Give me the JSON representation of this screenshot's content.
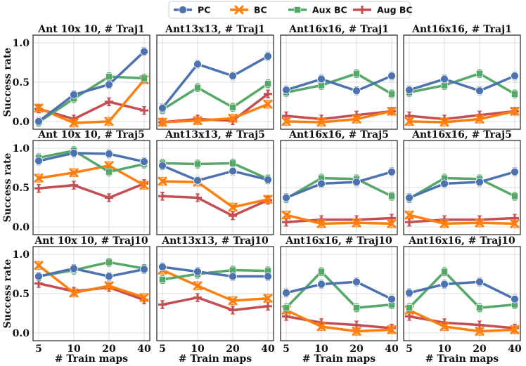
{
  "chart_data": {
    "type": "line",
    "legend": {
      "placement": "top-center",
      "entries": [
        {
          "name": "PC",
          "color": "#4c72b0",
          "marker": "circle"
        },
        {
          "name": "BC",
          "color": "#ff7f0e",
          "marker": "x"
        },
        {
          "name": "Aux BC",
          "color": "#55a868",
          "marker": "square"
        },
        {
          "name": "Aug BC",
          "color": "#c44e52",
          "marker": "plus"
        }
      ]
    },
    "x": [
      5,
      10,
      20,
      40
    ],
    "x_tick_labels": [
      "5",
      "10",
      "20",
      "40"
    ],
    "xlabel": "# Train maps",
    "ylabel": "Success rate",
    "ylim": [
      -0.1,
      1.1
    ],
    "y_ticks": [
      0.0,
      0.5,
      1.0
    ],
    "y_tick_labels": [
      "0.0",
      "0.5",
      "1.0"
    ],
    "grid": true,
    "panels": [
      {
        "title": "Ant 10x 10, # Traj1",
        "series": {
          "PC": [
            0.0,
            0.34,
            0.47,
            0.89
          ],
          "BC": [
            0.17,
            -0.02,
            0.0,
            0.53
          ],
          "Aux BC": [
            -0.01,
            0.29,
            0.57,
            0.55
          ],
          "Aug BC": [
            0.16,
            0.03,
            0.25,
            0.14
          ]
        }
      },
      {
        "title": "Ant13x13, # Traj1",
        "series": {
          "PC": [
            0.17,
            0.73,
            0.58,
            0.83
          ],
          "BC": [
            -0.01,
            0.01,
            0.04,
            0.22
          ],
          "Aux BC": [
            0.15,
            0.43,
            0.18,
            0.48
          ],
          "Aug BC": [
            -0.01,
            0.03,
            0.01,
            0.35
          ]
        }
      },
      {
        "title": "Ant16x16, # Traj1",
        "series": {
          "PC": [
            0.4,
            0.54,
            0.39,
            0.58
          ],
          "BC": [
            0.0,
            -0.01,
            0.03,
            0.13
          ],
          "Aux BC": [
            0.37,
            0.46,
            0.61,
            0.35
          ],
          "Aug BC": [
            0.07,
            0.03,
            0.08,
            0.13
          ]
        }
      },
      {
        "title": "Ant16x16, # Traj1",
        "series": {
          "PC": [
            0.4,
            0.54,
            0.39,
            0.58
          ],
          "BC": [
            0.0,
            -0.01,
            0.03,
            0.13
          ],
          "Aux BC": [
            0.37,
            0.46,
            0.61,
            0.35
          ],
          "Aug BC": [
            0.07,
            0.03,
            0.08,
            0.13
          ]
        }
      },
      {
        "title": "Ant 10x 10, # Traj5",
        "series": {
          "PC": [
            0.84,
            0.94,
            0.93,
            0.83
          ],
          "BC": [
            0.62,
            0.69,
            0.78,
            0.53
          ],
          "Aux BC": [
            0.88,
            0.97,
            0.7,
            0.8
          ],
          "Aug BC": [
            0.49,
            0.53,
            0.37,
            0.55
          ]
        }
      },
      {
        "title": "Ant13x13, # Traj5",
        "series": {
          "PC": [
            0.78,
            0.59,
            0.71,
            0.6
          ],
          "BC": [
            0.58,
            0.57,
            0.25,
            0.35
          ],
          "Aux BC": [
            0.81,
            0.8,
            0.81,
            0.61
          ],
          "Aug BC": [
            0.39,
            0.37,
            0.14,
            0.34
          ]
        }
      },
      {
        "title": "Ant16x16, # Traj5",
        "series": {
          "PC": [
            0.37,
            0.55,
            0.57,
            0.7
          ],
          "BC": [
            0.15,
            0.04,
            0.05,
            0.04
          ],
          "Aux BC": [
            0.36,
            0.62,
            0.61,
            0.39
          ],
          "Aug BC": [
            0.06,
            0.09,
            0.09,
            0.11
          ]
        }
      },
      {
        "title": "Ant16x16, # Traj5",
        "series": {
          "PC": [
            0.37,
            0.55,
            0.57,
            0.7
          ],
          "BC": [
            0.15,
            0.04,
            0.05,
            0.04
          ],
          "Aux BC": [
            0.36,
            0.62,
            0.61,
            0.39
          ],
          "Aug BC": [
            0.06,
            0.09,
            0.09,
            0.11
          ]
        }
      },
      {
        "title": "Ant 10x 10, # Traj10",
        "series": {
          "PC": [
            0.72,
            0.82,
            0.72,
            0.81
          ],
          "BC": [
            0.86,
            0.51,
            0.6,
            0.45
          ],
          "Aux BC": [
            0.72,
            0.8,
            0.9,
            0.82
          ],
          "Aug BC": [
            0.63,
            0.53,
            0.58,
            0.42
          ]
        }
      },
      {
        "title": "Ant13x13, # Traj10",
        "series": {
          "PC": [
            0.84,
            0.78,
            0.72,
            0.72
          ],
          "BC": [
            0.8,
            0.6,
            0.41,
            0.44
          ],
          "Aux BC": [
            0.68,
            0.75,
            0.8,
            0.79
          ],
          "Aug BC": [
            0.36,
            0.45,
            0.29,
            0.34
          ]
        }
      },
      {
        "title": "Ant16x16, # Traj10",
        "series": {
          "PC": [
            0.51,
            0.62,
            0.65,
            0.43
          ],
          "BC": [
            0.29,
            0.08,
            0.02,
            0.04
          ],
          "Aux BC": [
            0.32,
            0.78,
            0.32,
            0.36
          ],
          "Aug BC": [
            0.21,
            0.13,
            0.1,
            0.06
          ]
        }
      },
      {
        "title": "Ant16x16, # Traj10",
        "series": {
          "PC": [
            0.51,
            0.62,
            0.65,
            0.43
          ],
          "BC": [
            0.29,
            0.08,
            0.02,
            0.04
          ],
          "Aux BC": [
            0.32,
            0.78,
            0.32,
            0.36
          ],
          "Aug BC": [
            0.21,
            0.13,
            0.1,
            0.06
          ]
        }
      }
    ]
  }
}
